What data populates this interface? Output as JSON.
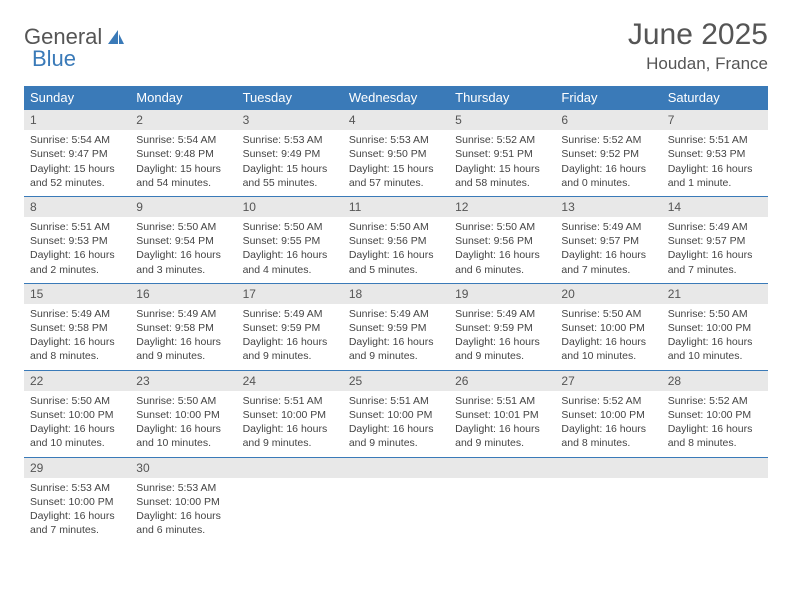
{
  "logo": {
    "text1": "General",
    "text2": "Blue"
  },
  "title": "June 2025",
  "location": "Houdan, France",
  "colors": {
    "header_bg": "#3a7ab8",
    "header_text": "#ffffff",
    "daynum_bg": "#e8e8e8",
    "border": "#3a7ab8",
    "text": "#444444"
  },
  "weekdays": [
    "Sunday",
    "Monday",
    "Tuesday",
    "Wednesday",
    "Thursday",
    "Friday",
    "Saturday"
  ],
  "weeks": [
    [
      {
        "n": "1",
        "sr": "5:54 AM",
        "ss": "9:47 PM",
        "dl": "15 hours and 52 minutes."
      },
      {
        "n": "2",
        "sr": "5:54 AM",
        "ss": "9:48 PM",
        "dl": "15 hours and 54 minutes."
      },
      {
        "n": "3",
        "sr": "5:53 AM",
        "ss": "9:49 PM",
        "dl": "15 hours and 55 minutes."
      },
      {
        "n": "4",
        "sr": "5:53 AM",
        "ss": "9:50 PM",
        "dl": "15 hours and 57 minutes."
      },
      {
        "n": "5",
        "sr": "5:52 AM",
        "ss": "9:51 PM",
        "dl": "15 hours and 58 minutes."
      },
      {
        "n": "6",
        "sr": "5:52 AM",
        "ss": "9:52 PM",
        "dl": "16 hours and 0 minutes."
      },
      {
        "n": "7",
        "sr": "5:51 AM",
        "ss": "9:53 PM",
        "dl": "16 hours and 1 minute."
      }
    ],
    [
      {
        "n": "8",
        "sr": "5:51 AM",
        "ss": "9:53 PM",
        "dl": "16 hours and 2 minutes."
      },
      {
        "n": "9",
        "sr": "5:50 AM",
        "ss": "9:54 PM",
        "dl": "16 hours and 3 minutes."
      },
      {
        "n": "10",
        "sr": "5:50 AM",
        "ss": "9:55 PM",
        "dl": "16 hours and 4 minutes."
      },
      {
        "n": "11",
        "sr": "5:50 AM",
        "ss": "9:56 PM",
        "dl": "16 hours and 5 minutes."
      },
      {
        "n": "12",
        "sr": "5:50 AM",
        "ss": "9:56 PM",
        "dl": "16 hours and 6 minutes."
      },
      {
        "n": "13",
        "sr": "5:49 AM",
        "ss": "9:57 PM",
        "dl": "16 hours and 7 minutes."
      },
      {
        "n": "14",
        "sr": "5:49 AM",
        "ss": "9:57 PM",
        "dl": "16 hours and 7 minutes."
      }
    ],
    [
      {
        "n": "15",
        "sr": "5:49 AM",
        "ss": "9:58 PM",
        "dl": "16 hours and 8 minutes."
      },
      {
        "n": "16",
        "sr": "5:49 AM",
        "ss": "9:58 PM",
        "dl": "16 hours and 9 minutes."
      },
      {
        "n": "17",
        "sr": "5:49 AM",
        "ss": "9:59 PM",
        "dl": "16 hours and 9 minutes."
      },
      {
        "n": "18",
        "sr": "5:49 AM",
        "ss": "9:59 PM",
        "dl": "16 hours and 9 minutes."
      },
      {
        "n": "19",
        "sr": "5:49 AM",
        "ss": "9:59 PM",
        "dl": "16 hours and 9 minutes."
      },
      {
        "n": "20",
        "sr": "5:50 AM",
        "ss": "10:00 PM",
        "dl": "16 hours and 10 minutes."
      },
      {
        "n": "21",
        "sr": "5:50 AM",
        "ss": "10:00 PM",
        "dl": "16 hours and 10 minutes."
      }
    ],
    [
      {
        "n": "22",
        "sr": "5:50 AM",
        "ss": "10:00 PM",
        "dl": "16 hours and 10 minutes."
      },
      {
        "n": "23",
        "sr": "5:50 AM",
        "ss": "10:00 PM",
        "dl": "16 hours and 10 minutes."
      },
      {
        "n": "24",
        "sr": "5:51 AM",
        "ss": "10:00 PM",
        "dl": "16 hours and 9 minutes."
      },
      {
        "n": "25",
        "sr": "5:51 AM",
        "ss": "10:00 PM",
        "dl": "16 hours and 9 minutes."
      },
      {
        "n": "26",
        "sr": "5:51 AM",
        "ss": "10:01 PM",
        "dl": "16 hours and 9 minutes."
      },
      {
        "n": "27",
        "sr": "5:52 AM",
        "ss": "10:00 PM",
        "dl": "16 hours and 8 minutes."
      },
      {
        "n": "28",
        "sr": "5:52 AM",
        "ss": "10:00 PM",
        "dl": "16 hours and 8 minutes."
      }
    ],
    [
      {
        "n": "29",
        "sr": "5:53 AM",
        "ss": "10:00 PM",
        "dl": "16 hours and 7 minutes."
      },
      {
        "n": "30",
        "sr": "5:53 AM",
        "ss": "10:00 PM",
        "dl": "16 hours and 6 minutes."
      },
      null,
      null,
      null,
      null,
      null
    ]
  ],
  "labels": {
    "sunrise": "Sunrise: ",
    "sunset": "Sunset: ",
    "daylight": "Daylight: "
  }
}
